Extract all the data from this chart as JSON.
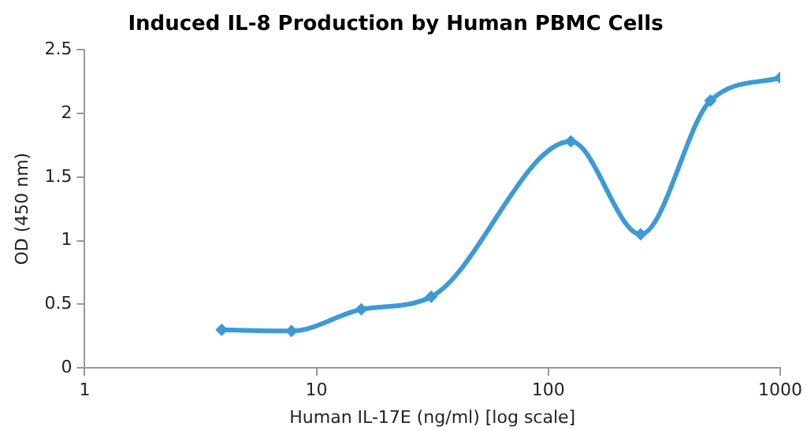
{
  "chart_data": {
    "type": "line",
    "title": "Induced IL-8 Production by Human PBMC Cells",
    "xlabel": "Human IL-17E (ng/ml) [log scale]",
    "ylabel": "OD (450 nm)",
    "x": [
      3.9,
      7.8,
      15.6,
      31.25,
      125,
      250,
      500,
      1000
    ],
    "series": [
      {
        "color": "#3d9ad6",
        "values": [
          0.3,
          0.29,
          0.46,
          0.56,
          1.78,
          1.05,
          2.1,
          2.28
        ]
      }
    ],
    "log": "x",
    "xlim": [
      1,
      1000
    ],
    "xticks": [
      1,
      10,
      100,
      1000
    ],
    "ylim": [
      0,
      2.5
    ],
    "yticks": [
      0,
      0.5,
      1,
      1.5,
      2,
      2.5
    ],
    "grid": false,
    "legend": false,
    "marker": "diamond",
    "line_style": "solid"
  }
}
